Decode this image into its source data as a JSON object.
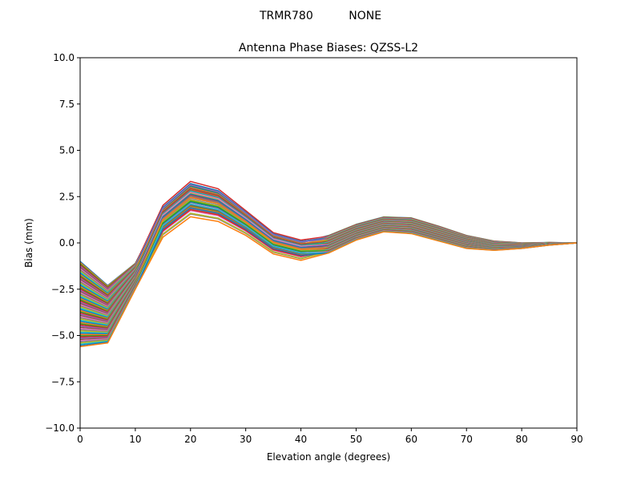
{
  "chart_data": {
    "type": "line",
    "suptitle": "TRMR780          NONE",
    "title": "Antenna Phase Biases: QZSS-L2",
    "xlabel": "Elevation angle (degrees)",
    "ylabel": "Bias (mm)",
    "xlim": [
      0,
      90
    ],
    "ylim": [
      -10,
      10
    ],
    "xticks": [
      0,
      10,
      20,
      30,
      40,
      50,
      60,
      70,
      80,
      90
    ],
    "yticks": [
      -10.0,
      -7.5,
      -5.0,
      -2.5,
      0.0,
      2.5,
      5.0,
      7.5,
      10.0
    ],
    "xtick_labels": [
      "0",
      "10",
      "20",
      "30",
      "40",
      "50",
      "60",
      "70",
      "80",
      "90"
    ],
    "ytick_labels": [
      "−10.0",
      "−7.5",
      "−5.0",
      "−2.5",
      "0.0",
      "2.5",
      "5.0",
      "7.5",
      "10.0"
    ],
    "grid": false,
    "legend": "none",
    "x": [
      0,
      5,
      10,
      15,
      20,
      25,
      30,
      35,
      40,
      45,
      50,
      55,
      60,
      65,
      70,
      75,
      80,
      85,
      90
    ],
    "profiles": {
      "a": [
        -1.0,
        -2.3,
        -1.1,
        2.1,
        3.4,
        3.0,
        1.8,
        0.6,
        0.2,
        0.4,
        1.0,
        1.4,
        1.35,
        0.9,
        0.4,
        0.1,
        0.0,
        0.02,
        0.0
      ],
      "b": [
        -5.6,
        -5.4,
        -2.5,
        0.3,
        1.4,
        1.15,
        0.4,
        -0.6,
        -0.95,
        -0.55,
        0.15,
        0.6,
        0.5,
        0.1,
        -0.3,
        -0.4,
        -0.3,
        -0.12,
        0.0
      ]
    },
    "series_count": 72,
    "colors": [
      "#1f77b4",
      "#ff7f0e",
      "#2ca02c",
      "#d62728",
      "#9467bd",
      "#8c564b",
      "#e377c2",
      "#7f7f7f",
      "#bcbd22",
      "#17becf"
    ]
  }
}
